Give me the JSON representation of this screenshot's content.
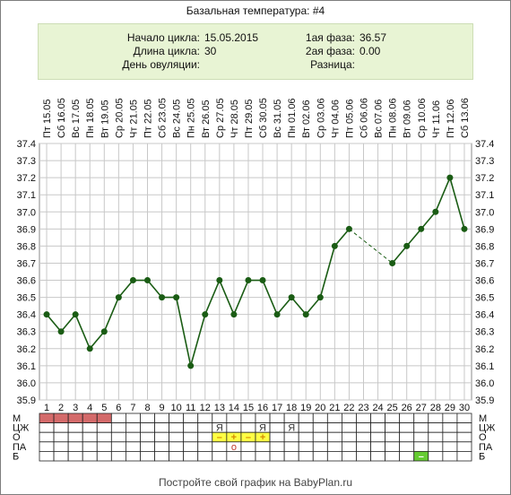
{
  "title": "Базальная температура: #4",
  "info": {
    "cycle_start_label": "Начало цикла:",
    "cycle_start_value": "15.05.2015",
    "cycle_length_label": "Длина цикла:",
    "cycle_length_value": "30",
    "ovulation_day_label": "День овуляции:",
    "ovulation_day_value": "",
    "phase1_label": "1ая фаза:",
    "phase1_value": "36.57",
    "phase2_label": "2ая фаза:",
    "phase2_value": "0.00",
    "difference_label": "Разница:",
    "difference_value": ""
  },
  "chart_data": {
    "type": "line",
    "x": [
      1,
      2,
      3,
      4,
      5,
      6,
      7,
      8,
      9,
      10,
      11,
      12,
      13,
      14,
      15,
      16,
      17,
      18,
      19,
      20,
      21,
      22,
      23,
      24,
      25,
      26,
      27,
      28,
      29,
      30
    ],
    "dates": [
      "Пт 15.05",
      "Сб 16.05",
      "Вс 17.05",
      "Пн 18.05",
      "Вт 19.05",
      "Ср 20.05",
      "Чт 21.05",
      "Пт 22.05",
      "Сб 23.05",
      "Вс 24.05",
      "Пн 25.05",
      "Вт 26.05",
      "Ср 27.05",
      "Чт 28.05",
      "Пт 29.05",
      "Сб 30.05",
      "Вс 31.05",
      "Пн 01.06",
      "Вт 02.06",
      "Ср 03.06",
      "Чт 04.06",
      "Пт 05.06",
      "Сб 06.06",
      "Вс 07.06",
      "Пн 08.06",
      "Вт 09.06",
      "Ср 10.06",
      "Чт 11.06",
      "Пт 12.06",
      "Сб 13.06"
    ],
    "series": [
      {
        "values": [
          36.4,
          36.3,
          36.4,
          36.2,
          36.3,
          36.5,
          36.6,
          36.6,
          36.5,
          36.5,
          36.1,
          36.4,
          36.6,
          36.4,
          36.6,
          36.6,
          36.4,
          36.5,
          36.4,
          36.5,
          36.8,
          36.9,
          null,
          null,
          36.7,
          36.8,
          36.9,
          37.0,
          37.2,
          36.9
        ],
        "color": "#1a5c14"
      }
    ],
    "ylim": [
      35.9,
      37.4
    ],
    "y_ticks": [
      "37.4",
      "37.3",
      "37.2",
      "37.1",
      "37.0",
      "36.9",
      "36.8",
      "36.7",
      "36.6",
      "36.5",
      "36.4",
      "36.3",
      "36.2",
      "36.1",
      "36.0",
      "35.9"
    ],
    "grid": true,
    "marker_rows": [
      {
        "label": "М",
        "cells": {
          "1": "period",
          "2": "period",
          "3": "period",
          "4": "period",
          "5": "period"
        }
      },
      {
        "label": "ЦЖ",
        "cells": {
          "13": "Я",
          "16": "Я",
          "18": "Я"
        }
      },
      {
        "label": "О",
        "cells": {
          "13": "–",
          "14": "+",
          "15": "–",
          "16": "+"
        }
      },
      {
        "label": "ПА",
        "cells": {
          "14": "o"
        }
      },
      {
        "label": "Б",
        "cells": {
          "27": "–"
        }
      }
    ],
    "colors": {
      "period": "#d46a6a",
      "test": "#ffff44",
      "green": "#66cc33",
      "line": "#1a5c14",
      "grid": "#c8c8c8"
    }
  },
  "footer": "Постройте свой график на BabyPlan.ru"
}
